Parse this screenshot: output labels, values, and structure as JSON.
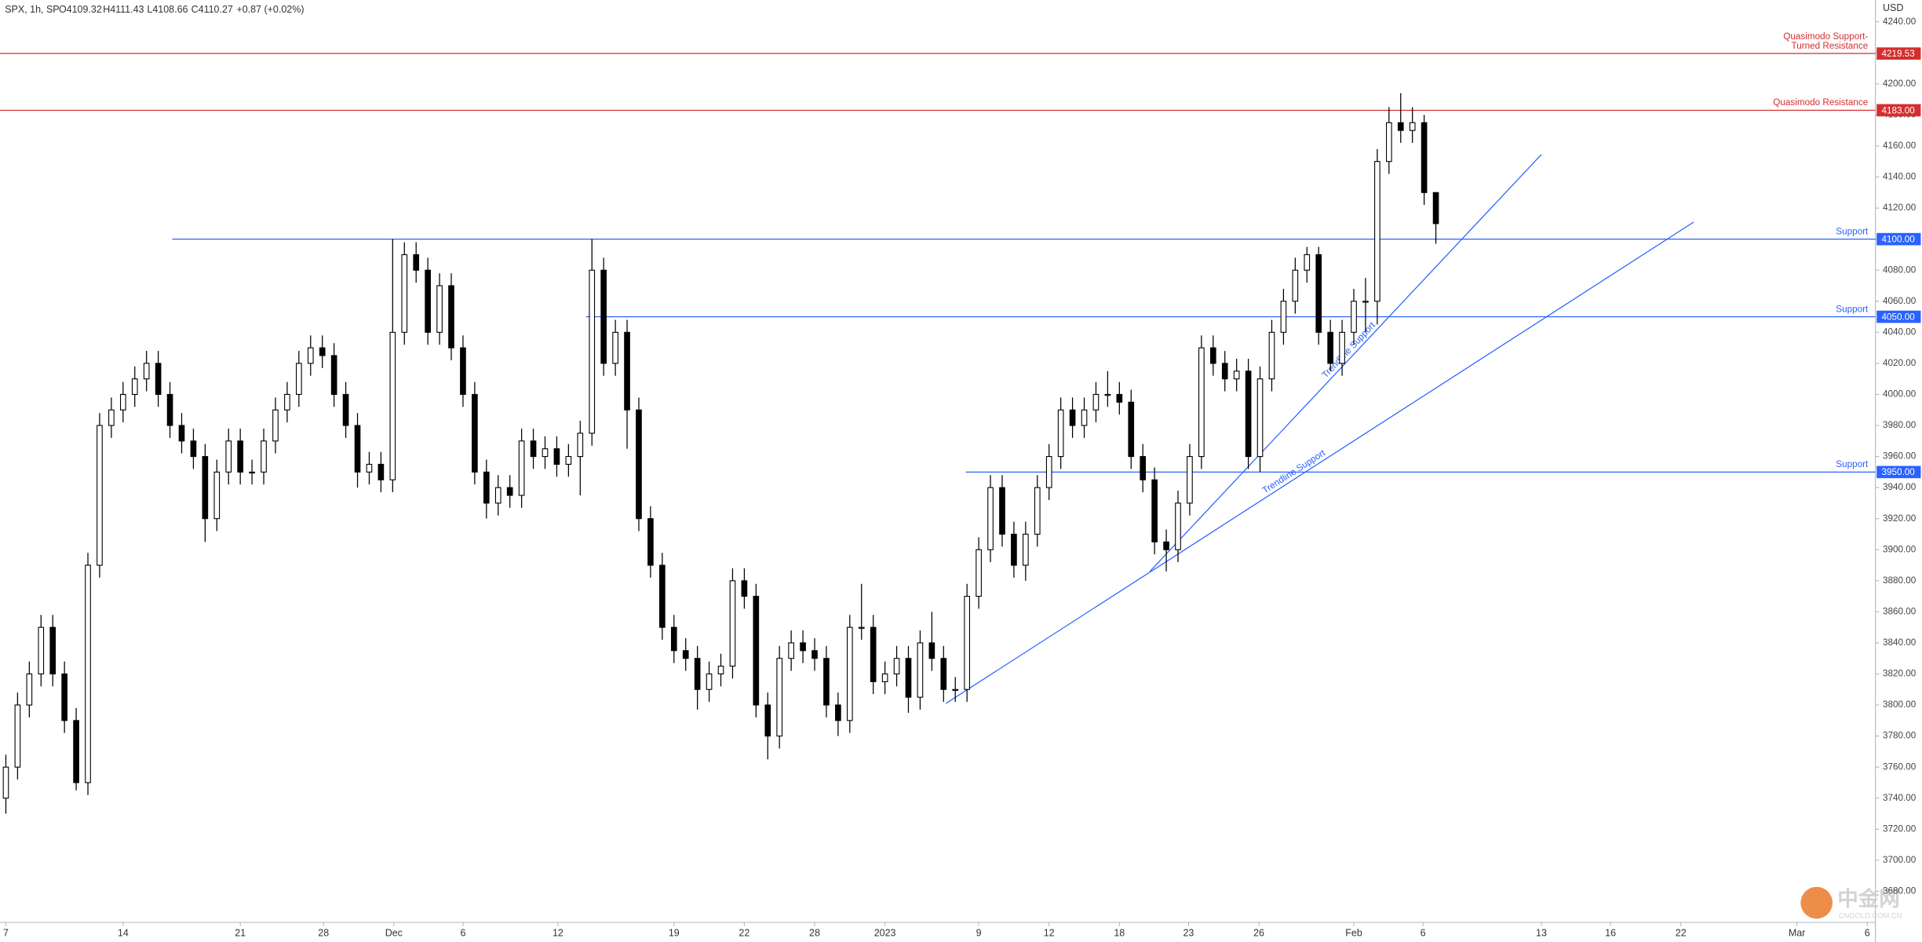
{
  "chart_data": {
    "type": "candlestick",
    "header": {
      "symbol": "SPX, 1h, SP",
      "open": "O4109.32",
      "high": "H4111.43",
      "low": "L4108.66",
      "close": "C4110.27",
      "change": "+0.87 (+0.02%)"
    },
    "currency": "USD",
    "watermark": {
      "name": "中金网",
      "site": "CNGOLD.COM.CN"
    },
    "ylim": [
      3660,
      4254
    ],
    "xlim": [
      0,
      160
    ],
    "yticks": [
      {
        "value": 3680,
        "label": "3680.00"
      },
      {
        "value": 3700,
        "label": "3700.00"
      },
      {
        "value": 3720,
        "label": "3720.00"
      },
      {
        "value": 3740,
        "label": "3740.00"
      },
      {
        "value": 3760,
        "label": "3760.00"
      },
      {
        "value": 3780,
        "label": "3780.00"
      },
      {
        "value": 3800,
        "label": "3800.00"
      },
      {
        "value": 3820,
        "label": "3820.00"
      },
      {
        "value": 3840,
        "label": "3840.00"
      },
      {
        "value": 3860,
        "label": "3860.00"
      },
      {
        "value": 3880,
        "label": "3880.00"
      },
      {
        "value": 3900,
        "label": "3900.00"
      },
      {
        "value": 3920,
        "label": "3920.00"
      },
      {
        "value": 3940,
        "label": "3940.00"
      },
      {
        "value": 3960,
        "label": "3960.00"
      },
      {
        "value": 3980,
        "label": "3980.00"
      },
      {
        "value": 4000,
        "label": "4000.00"
      },
      {
        "value": 4020,
        "label": "4020.00"
      },
      {
        "value": 4040,
        "label": "4040.00"
      },
      {
        "value": 4060,
        "label": "4060.00"
      },
      {
        "value": 4080,
        "label": "4080.00"
      },
      {
        "value": 4100,
        "label": "4100.00"
      },
      {
        "value": 4120,
        "label": "4120.00"
      },
      {
        "value": 4140,
        "label": "4140.00"
      },
      {
        "value": 4160,
        "label": "4160.00"
      },
      {
        "value": 4180,
        "label": "4180.00"
      },
      {
        "value": 4200,
        "label": "4200.00"
      },
      {
        "value": 4220,
        "label": "4220.00"
      },
      {
        "value": 4240,
        "label": "4240.00"
      }
    ],
    "xticks": [
      {
        "value": 0.5,
        "label": "7"
      },
      {
        "value": 10.5,
        "label": "14"
      },
      {
        "value": 20.5,
        "label": "21"
      },
      {
        "value": 27.6,
        "label": "28"
      },
      {
        "value": 33.6,
        "label": "Dec"
      },
      {
        "value": 39.5,
        "label": "6"
      },
      {
        "value": 47.6,
        "label": "12"
      },
      {
        "value": 57.5,
        "label": "19"
      },
      {
        "value": 63.5,
        "label": "22"
      },
      {
        "value": 69.5,
        "label": "28"
      },
      {
        "value": 75.5,
        "label": "2023"
      },
      {
        "value": 83.5,
        "label": "9"
      },
      {
        "value": 89.5,
        "label": "12"
      },
      {
        "value": 95.5,
        "label": "18"
      },
      {
        "value": 101.4,
        "label": "23"
      },
      {
        "value": 107.4,
        "label": "26"
      },
      {
        "value": 115.5,
        "label": "Feb"
      },
      {
        "value": 121.4,
        "label": "6"
      },
      {
        "value": 131.5,
        "label": "13"
      },
      {
        "value": 137.4,
        "label": "16"
      },
      {
        "value": 143.4,
        "label": "22"
      },
      {
        "value": 153.3,
        "label": "Mar"
      },
      {
        "value": 159.3,
        "label": "6"
      }
    ],
    "up_color": "#ffffff",
    "down_color": "#000000",
    "wick_color": "#000000",
    "open": [
      3740,
      3760,
      3800,
      3820,
      3850,
      3820,
      3790,
      3750,
      3890,
      3980,
      3990,
      4000,
      4010,
      4020,
      4000,
      3980,
      3970,
      3960,
      3920,
      3950,
      3970,
      3950,
      3950,
      3970,
      3990,
      4000,
      4020,
      4030,
      4025,
      4000,
      3980,
      3950,
      3955,
      3945,
      4040,
      4090,
      4080,
      4040,
      4070,
      4030,
      4000,
      3950,
      3930,
      3940,
      3935,
      3970,
      3960,
      3965,
      3955,
      3960,
      3975,
      4080,
      4020,
      4040,
      3990,
      3920,
      3890,
      3850,
      3835,
      3830,
      3810,
      3820,
      3825,
      3880,
      3870,
      3800,
      3780,
      3830,
      3840,
      3835,
      3830,
      3800,
      3790,
      3850,
      3850,
      3815,
      3820,
      3830,
      3805,
      3840,
      3830,
      3810,
      3810,
      3870,
      3900,
      3940,
      3910,
      3890,
      3910,
      3940,
      3960,
      3990,
      3980,
      3990,
      4000,
      4000,
      3995,
      3960,
      3945,
      3905,
      3900,
      3930,
      3960,
      4030,
      4020,
      4010,
      4015,
      3960,
      4010,
      4040,
      4060,
      4080,
      4090,
      4040,
      4020,
      4040,
      4060,
      4060,
      4150,
      4175,
      4170,
      4175,
      4130
    ],
    "high": [
      3768,
      3808,
      3828,
      3858,
      3858,
      3828,
      3798,
      3898,
      3988,
      3998,
      4008,
      4018,
      4028,
      4028,
      4008,
      3988,
      3978,
      3968,
      3958,
      3978,
      3978,
      3958,
      3978,
      3998,
      4008,
      4028,
      4038,
      4038,
      4033,
      4008,
      3988,
      3963,
      3963,
      4100,
      4098,
      4098,
      4088,
      4078,
      4078,
      4038,
      4008,
      3958,
      3948,
      3948,
      3978,
      3978,
      3973,
      3973,
      3968,
      3983,
      4100,
      4088,
      4048,
      4048,
      3998,
      3928,
      3898,
      3858,
      3843,
      3838,
      3828,
      3833,
      3888,
      3888,
      3878,
      3808,
      3838,
      3848,
      3848,
      3843,
      3838,
      3808,
      3858,
      3878,
      3858,
      3828,
      3838,
      3838,
      3848,
      3860,
      3838,
      3818,
      3878,
      3908,
      3948,
      3948,
      3918,
      3918,
      3948,
      3968,
      3998,
      3998,
      3998,
      4008,
      4015,
      4008,
      4003,
      3968,
      3953,
      3913,
      3938,
      3968,
      4038,
      4038,
      4028,
      4023,
      4023,
      4018,
      4048,
      4068,
      4088,
      4095,
      4095,
      4048,
      4048,
      4068,
      4075,
      4158,
      4185,
      4194,
      4185,
      4180,
      4128
    ],
    "low": [
      3730,
      3752,
      3792,
      3812,
      3812,
      3782,
      3745,
      3742,
      3882,
      3972,
      3982,
      3992,
      4002,
      3992,
      3972,
      3962,
      3952,
      3905,
      3912,
      3942,
      3942,
      3942,
      3942,
      3962,
      3982,
      3992,
      4012,
      4017,
      3992,
      3972,
      3940,
      3942,
      3937,
      3937,
      4032,
      4072,
      4032,
      4032,
      4022,
      3992,
      3942,
      3920,
      3922,
      3927,
      3927,
      3952,
      3952,
      3947,
      3947,
      3935,
      3967,
      4012,
      4012,
      3965,
      3912,
      3882,
      3842,
      3827,
      3822,
      3797,
      3802,
      3812,
      3817,
      3862,
      3792,
      3765,
      3772,
      3822,
      3827,
      3822,
      3792,
      3780,
      3782,
      3842,
      3807,
      3807,
      3812,
      3795,
      3797,
      3822,
      3802,
      3802,
      3802,
      3862,
      3892,
      3902,
      3882,
      3880,
      3902,
      3932,
      3952,
      3972,
      3972,
      3982,
      3992,
      3987,
      3952,
      3937,
      3897,
      3886,
      3892,
      3922,
      3952,
      4012,
      4002,
      4002,
      3952,
      3950,
      4002,
      4032,
      4052,
      4072,
      4032,
      4015,
      4012,
      4032,
      4040,
      4045,
      4142,
      4162,
      4162,
      4122,
      4097
    ],
    "close": [
      3760,
      3800,
      3820,
      3850,
      3820,
      3790,
      3750,
      3890,
      3980,
      3990,
      4000,
      4010,
      4020,
      4000,
      3980,
      3970,
      3960,
      3920,
      3950,
      3970,
      3950,
      3950,
      3970,
      3990,
      4000,
      4020,
      4030,
      4025,
      4000,
      3980,
      3950,
      3955,
      3945,
      4040,
      4090,
      4080,
      4040,
      4070,
      4030,
      4000,
      3950,
      3930,
      3940,
      3935,
      3970,
      3960,
      3965,
      3955,
      3960,
      3975,
      4080,
      4020,
      4040,
      3990,
      3920,
      3890,
      3850,
      3835,
      3830,
      3810,
      3820,
      3825,
      3880,
      3870,
      3800,
      3780,
      3830,
      3840,
      3835,
      3830,
      3800,
      3790,
      3850,
      3850,
      3815,
      3820,
      3830,
      3805,
      3840,
      3830,
      3810,
      3810,
      3870,
      3900,
      3940,
      3910,
      3890,
      3910,
      3940,
      3960,
      3990,
      3980,
      3990,
      4000,
      4000,
      3995,
      3960,
      3945,
      3905,
      3900,
      3930,
      3960,
      4030,
      4020,
      4010,
      4015,
      3960,
      4010,
      4040,
      4060,
      4080,
      4090,
      4040,
      4020,
      4040,
      4060,
      4060,
      4150,
      4175,
      4170,
      4175,
      4130,
      4110
    ],
    "levels": [
      {
        "price": 4219.53,
        "price_label": "4219.53",
        "text": [
          "Quasimodo Support-",
          "Turned Resistance"
        ],
        "color": "#d32f2f",
        "start": 0
      },
      {
        "price": 4183,
        "price_label": "4183.00",
        "text": [
          "Quasimodo Resistance"
        ],
        "color": "#d32f2f",
        "start": 0
      },
      {
        "price": 4100,
        "price_label": "4100.00",
        "text": [
          "Support"
        ],
        "color": "#2962ff",
        "start": 14.7
      },
      {
        "price": 4050,
        "price_label": "4050.00",
        "text": [
          "Support"
        ],
        "color": "#2962ff",
        "start": 50
      },
      {
        "price": 3950,
        "price_label": "3950.00",
        "text": [
          "Support"
        ],
        "color": "#2962ff",
        "start": 82.4
      }
    ],
    "trendlines": [
      {
        "label": "Trendline Support",
        "x": [
          98.1,
          131.5
        ],
        "y": [
          3886,
          4154.5
        ],
        "color": "#2962ff"
      },
      {
        "label": "Trendline Support",
        "x": [
          80.7,
          144.5
        ],
        "y": [
          3801,
          4111
        ],
        "color": "#2962ff"
      }
    ]
  }
}
